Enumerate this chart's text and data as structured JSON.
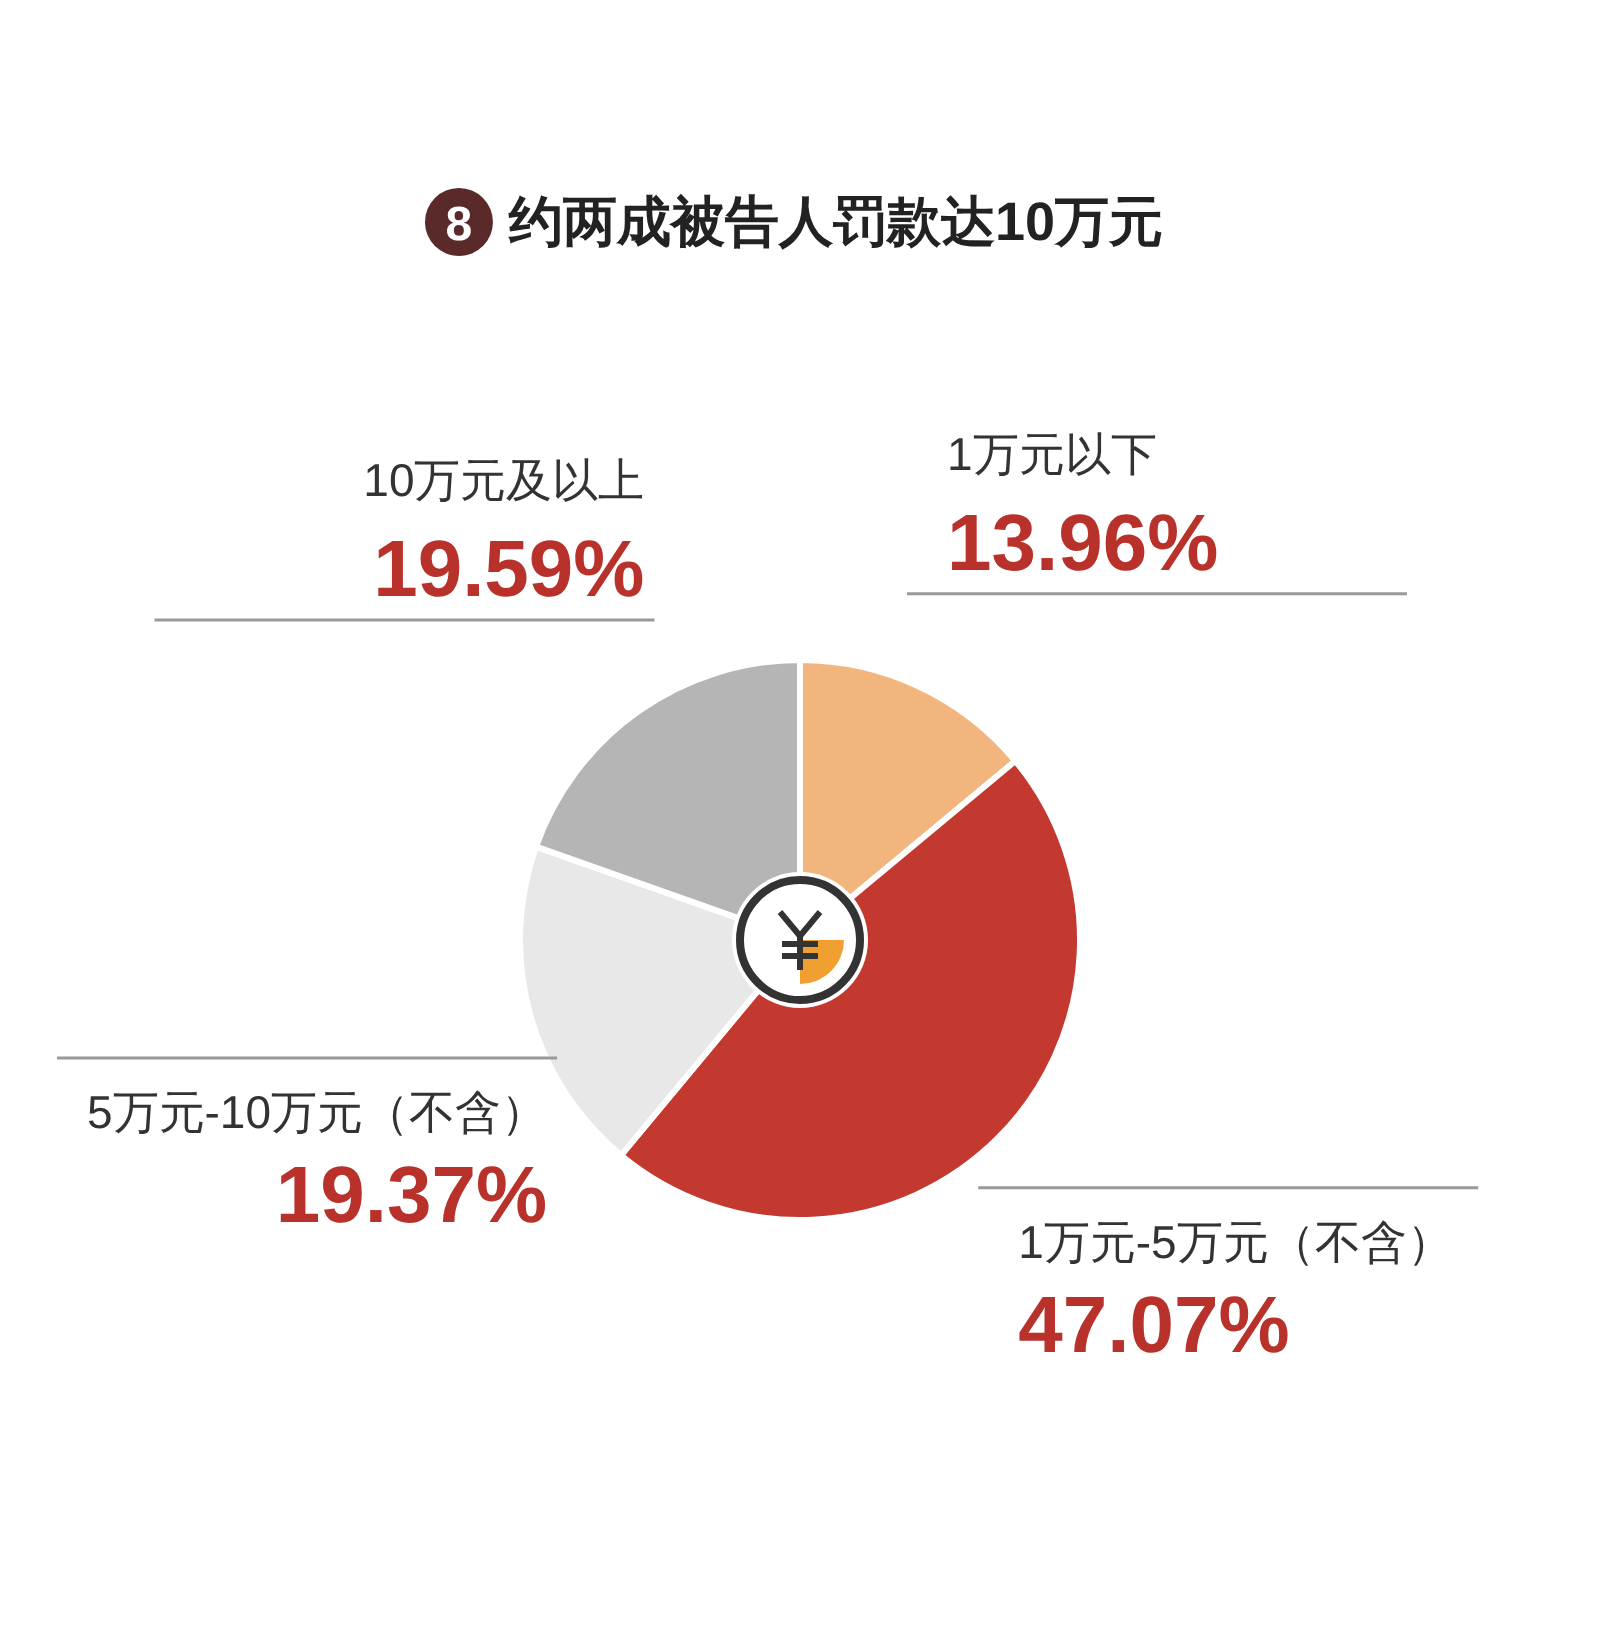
{
  "chart_data": {
    "type": "donut",
    "title": "约两成被告人罚款达10万元",
    "annotations": [
      "8"
    ],
    "categories": [
      "1万元以下",
      "1万元-5万元（不含）",
      "5万元-10万元（不含）",
      "10万元及以上"
    ],
    "values": [
      13.96,
      47.07,
      19.37,
      19.59
    ],
    "value_labels": [
      "13.96%",
      "47.07%",
      "19.37%",
      "19.59%"
    ],
    "colors": [
      "#f2b57e",
      "#c4392f",
      "#e8e8e8",
      "#b5b5b5"
    ]
  }
}
